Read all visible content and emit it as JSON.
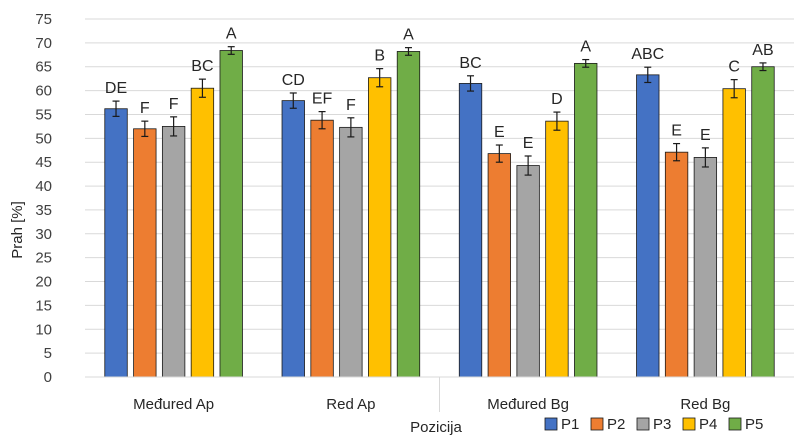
{
  "chart_data": {
    "type": "bar",
    "xlabel": "Pozicija",
    "ylabel": "Prah [%]",
    "ylim": [
      0,
      75
    ],
    "ytick_step": 5,
    "grid": "horizontal",
    "legend_position": "bottom-right",
    "categories": [
      "Međured Ap",
      "Red Ap",
      "Međured Bg",
      "Red Bg"
    ],
    "series": [
      {
        "name": "P1",
        "color": "#4472C4",
        "values": [
          56.2,
          57.9,
          61.5,
          63.3
        ],
        "errors": [
          1.6,
          1.6,
          1.6,
          1.6
        ],
        "labels": [
          "DE",
          "CD",
          "BC",
          "ABC"
        ]
      },
      {
        "name": "P2",
        "color": "#ED7D31",
        "values": [
          52.0,
          53.8,
          46.8,
          47.1
        ],
        "errors": [
          1.6,
          1.8,
          1.8,
          1.8
        ],
        "labels": [
          "F",
          "EF",
          "E",
          "E"
        ]
      },
      {
        "name": "P3",
        "color": "#A5A5A5",
        "values": [
          52.5,
          52.3,
          44.3,
          46.0
        ],
        "errors": [
          2.0,
          2.0,
          2.0,
          2.0
        ],
        "labels": [
          "F",
          "F",
          "E",
          "E"
        ]
      },
      {
        "name": "P4",
        "color": "#FFC000",
        "values": [
          60.5,
          62.7,
          53.6,
          60.4
        ],
        "errors": [
          1.9,
          1.9,
          1.9,
          1.9
        ],
        "labels": [
          "BC",
          "B",
          "D",
          "C"
        ]
      },
      {
        "name": "P5",
        "color": "#70AD47",
        "values": [
          68.4,
          68.2,
          65.7,
          65.0
        ],
        "errors": [
          0.8,
          0.8,
          0.8,
          0.8
        ],
        "labels": [
          "A",
          "A",
          "A",
          "AB"
        ]
      }
    ]
  }
}
